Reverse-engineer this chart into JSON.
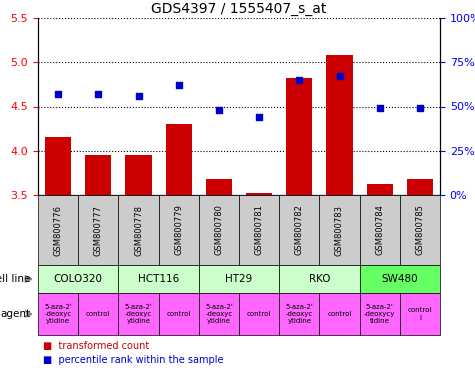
{
  "title": "GDS4397 / 1555407_s_at",
  "samples": [
    "GSM800776",
    "GSM800777",
    "GSM800778",
    "GSM800779",
    "GSM800780",
    "GSM800781",
    "GSM800782",
    "GSM800783",
    "GSM800784",
    "GSM800785"
  ],
  "bar_values": [
    4.15,
    3.95,
    3.95,
    4.3,
    3.68,
    3.52,
    4.82,
    5.08,
    3.62,
    3.68
  ],
  "scatter_values": [
    57,
    57,
    56,
    62,
    48,
    44,
    65,
    67,
    49,
    49
  ],
  "bar_color": "#cc0000",
  "scatter_color": "#0000cc",
  "ylim_left": [
    3.5,
    5.5
  ],
  "ylim_right": [
    0,
    100
  ],
  "yticks_left": [
    3.5,
    4.0,
    4.5,
    5.0,
    5.5
  ],
  "yticks_right": [
    0,
    25,
    50,
    75,
    100
  ],
  "ytick_labels_right": [
    "0%",
    "25%",
    "50%",
    "75%",
    "100%"
  ],
  "cell_line_groups": [
    {
      "label": "COLO320",
      "start": 0,
      "end": 1,
      "color": "#ccffcc"
    },
    {
      "label": "HCT116",
      "start": 2,
      "end": 3,
      "color": "#ccffcc"
    },
    {
      "label": "HT29",
      "start": 4,
      "end": 5,
      "color": "#ccffcc"
    },
    {
      "label": "RKO",
      "start": 6,
      "end": 7,
      "color": "#ccffcc"
    },
    {
      "label": "SW480",
      "start": 8,
      "end": 9,
      "color": "#66ff66"
    }
  ],
  "agent_groups": [
    {
      "label": "5-aza-2'\n-deoxyc\nytidine",
      "col": 0,
      "color": "#ff66ff"
    },
    {
      "label": "control",
      "col": 1,
      "color": "#ff66ff"
    },
    {
      "label": "5-aza-2'\n-deoxyc\nytidine",
      "col": 2,
      "color": "#ff66ff"
    },
    {
      "label": "control",
      "col": 3,
      "color": "#ff66ff"
    },
    {
      "label": "5-aza-2'\n-deoxyc\nytidine",
      "col": 4,
      "color": "#ff66ff"
    },
    {
      "label": "control",
      "col": 5,
      "color": "#ff66ff"
    },
    {
      "label": "5-aza-2'\n-deoxyc\nytidine",
      "col": 6,
      "color": "#ff66ff"
    },
    {
      "label": "control",
      "col": 7,
      "color": "#ff66ff"
    },
    {
      "label": "5-aza-2'\n-deoxycy\ntidine",
      "col": 8,
      "color": "#ff66ff"
    },
    {
      "label": "control\nl",
      "col": 9,
      "color": "#ff66ff"
    }
  ],
  "sample_bg_color": "#cccccc",
  "arrow_color": "#888888"
}
